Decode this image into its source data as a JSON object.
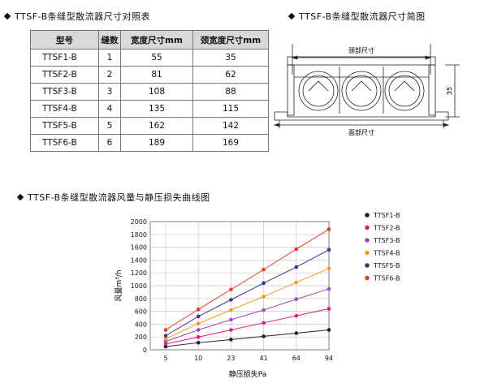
{
  "table_section": {
    "title": "TTSF-B条缝型散流器尺寸对照表",
    "headers": [
      "型号",
      "缝数",
      "宽度尺寸mm",
      "颈宽度尺寸mm"
    ],
    "rows": [
      {
        "model": "TTSF1-B",
        "slots": "1",
        "width": "55",
        "neck": "35"
      },
      {
        "model": "TTSF2-B",
        "slots": "2",
        "width": "81",
        "neck": "62"
      },
      {
        "model": "TTSF3-B",
        "slots": "3",
        "width": "108",
        "neck": "88"
      },
      {
        "model": "TTSF4-B",
        "slots": "4",
        "width": "135",
        "neck": "115"
      },
      {
        "model": "TTSF5-B",
        "slots": "5",
        "width": "162",
        "neck": "142"
      },
      {
        "model": "TTSF6-B",
        "slots": "6",
        "width": "189",
        "neck": "169"
      }
    ]
  },
  "drawing_section": {
    "title": "TTSF-B条缝型散流器尺寸简图",
    "neck_label": "颈部尺寸",
    "face_label": "面部尺寸",
    "height_label": "35"
  },
  "chart_section": {
    "title": "TTSF-B条缝型散流器风量与静压损失曲线图"
  },
  "chart_data": {
    "type": "line",
    "categories": [
      "5",
      "10",
      "23",
      "41",
      "64",
      "94"
    ],
    "ylabel": "风量m³/h",
    "xlabel": "静压损失Pa",
    "ylim": [
      0,
      2000
    ],
    "yticks": [
      0,
      200,
      400,
      600,
      800,
      1000,
      1200,
      1400,
      1600,
      1800,
      2000
    ],
    "grid": true,
    "legend_position": "right",
    "series": [
      {
        "name": "TTSF1-B",
        "color": "#222222",
        "values": [
          50,
          110,
          160,
          210,
          260,
          310
        ]
      },
      {
        "name": "TTSF2-B",
        "color": "#e0197d",
        "values": [
          90,
          200,
          310,
          420,
          530,
          640
        ]
      },
      {
        "name": "TTSF3-B",
        "color": "#9b4bb5",
        "values": [
          130,
          310,
          470,
          620,
          790,
          950
        ]
      },
      {
        "name": "TTSF4-B",
        "color": "#f39a1e",
        "values": [
          170,
          410,
          620,
          830,
          1050,
          1270
        ]
      },
      {
        "name": "TTSF5-B",
        "color": "#3a3390",
        "values": [
          220,
          520,
          780,
          1040,
          1290,
          1560
        ]
      },
      {
        "name": "TTSF6-B",
        "color": "#e83a24",
        "values": [
          310,
          630,
          940,
          1250,
          1570,
          1880
        ]
      }
    ]
  }
}
